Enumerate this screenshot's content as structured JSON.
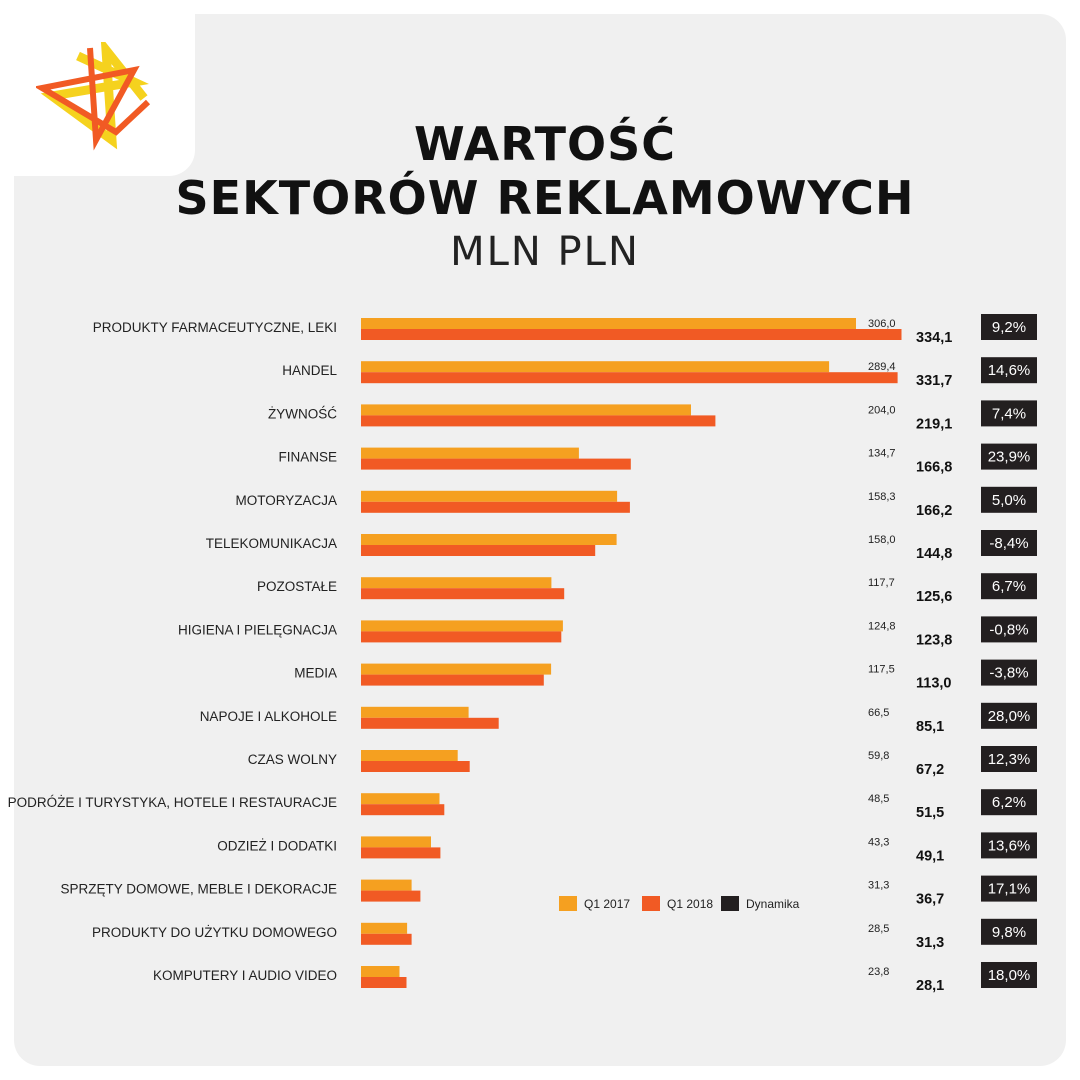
{
  "title_line1": "WARTOŚĆ",
  "title_line2": "SEKTORÓW REKLAMOWYCH",
  "subtitle": "MLN PLN",
  "logo_icon": "star-logo-icon",
  "colors": {
    "background": "#f0f0f0",
    "q1_2017": "#f5a020",
    "q1_2018": "#f15a24",
    "dynamika": "#231f20",
    "logo_yellow": "#f5d21e",
    "logo_orange": "#f15a24"
  },
  "chart_data": {
    "type": "bar",
    "orientation": "horizontal",
    "title": "WARTOŚĆ SEKTORÓW REKLAMOWYCH",
    "subtitle": "MLN PLN",
    "categories": [
      "PRODUKTY FARMACEUTYCZNE, LEKI",
      "HANDEL",
      "ŻYWNOŚĆ",
      "FINANSE",
      "MOTORYZACJA",
      "TELEKOMUNIKACJA",
      "POZOSTAŁE",
      "HIGIENA I PIELĘGNACJA",
      "MEDIA",
      "NAPOJE I ALKOHOLE",
      "CZAS WOLNY",
      "PODRÓŻE I TURYSTYKA, HOTELE I RESTAURACJE",
      "ODZIEŻ I DODATKI",
      "SPRZĘTY DOMOWE, MEBLE I DEKORACJE",
      "PRODUKTY DO UŻYTKU DOMOWEGO",
      "KOMPUTERY I AUDIO VIDEO"
    ],
    "series": [
      {
        "name": "Q1 2017",
        "values": [
          306.0,
          289.4,
          204.0,
          134.7,
          158.3,
          158.0,
          117.7,
          124.8,
          117.5,
          66.5,
          59.8,
          48.5,
          43.3,
          31.3,
          28.5,
          23.8
        ],
        "labels": [
          "306,0",
          "289,4",
          "204,0",
          "134,7",
          "158,3",
          "158,0",
          "117,7",
          "124,8",
          "117,5",
          "66,5",
          "59,8",
          "48,5",
          "43,3",
          "31,3",
          "28,5",
          "23,8"
        ]
      },
      {
        "name": "Q1 2018",
        "values": [
          334.1,
          331.7,
          219.1,
          166.8,
          166.2,
          144.8,
          125.6,
          123.8,
          113.0,
          85.1,
          67.2,
          51.5,
          49.1,
          36.7,
          31.3,
          28.1
        ],
        "labels": [
          "334,1",
          "331,7",
          "219,1",
          "166,8",
          "166,2",
          "144,8",
          "125,6",
          "123,8",
          "113,0",
          "85,1",
          "67,2",
          "51,5",
          "49,1",
          "36,7",
          "31,3",
          "28,1"
        ]
      }
    ],
    "dynamika": {
      "name": "Dynamika",
      "labels": [
        "9,2%",
        "14,6%",
        "7,4%",
        "23,9%",
        "5,0%",
        "-8,4%",
        "6,7%",
        "-0,8%",
        "-3,8%",
        "28,0%",
        "12,3%",
        "6,2%",
        "13,6%",
        "17,1%",
        "9,8%",
        "18,0%"
      ]
    },
    "xlim": [
      0,
      340
    ],
    "grid": false,
    "legend": {
      "placement": "lower-right",
      "entries": [
        "Q1 2017",
        "Q1 2018",
        "Dynamika"
      ]
    }
  }
}
